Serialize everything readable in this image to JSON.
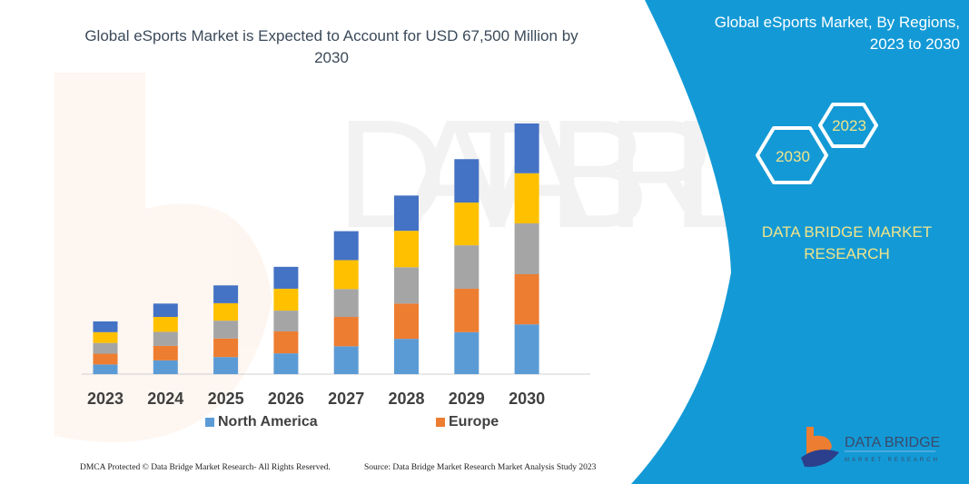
{
  "title": "Global eSports Market is Expected to Account for USD 67,500 Million by 2030",
  "side_panel": {
    "title_line1": "Global eSports Market, By Regions,",
    "title_line2": "2023 to 2030",
    "hex_labels": [
      "2030",
      "2023"
    ],
    "brand_line1": "DATA BRIDGE MARKET",
    "brand_line2": "RESEARCH",
    "logo_text": "DATA BRIDGE",
    "logo_subtext": "MARKET RESEARCH",
    "background_color": "#139ad6",
    "accent_text_color": "#f1e48a"
  },
  "footer": {
    "copyright": "DMCA Protected © Data Bridge Market Research- All Rights Reserved.",
    "source": "Source: Data Bridge Market Research Market Analysis Study 2023"
  },
  "chart_data": {
    "type": "bar",
    "stacked": true,
    "title": "Global eSports Market is Expected to Account for USD 67,500 Million by 2030",
    "categories": [
      "2023",
      "2024",
      "2025",
      "2026",
      "2027",
      "2028",
      "2029",
      "2030"
    ],
    "series": [
      {
        "name": "North America",
        "color": "#5b9bd5",
        "values": [
          2600,
          3700,
          4600,
          5600,
          7500,
          9500,
          11300,
          13400
        ]
      },
      {
        "name": "Europe",
        "color": "#ed7d31",
        "values": [
          2900,
          3900,
          5000,
          5900,
          7900,
          9500,
          11700,
          13500
        ]
      },
      {
        "color": "#a5a5a5",
        "values": [
          2900,
          3800,
          4800,
          5600,
          7500,
          9800,
          11700,
          13700
        ]
      },
      {
        "color": "#ffc000",
        "values": [
          2900,
          4000,
          4700,
          5900,
          7800,
          9800,
          11500,
          13500
        ]
      },
      {
        "color": "#4472c4",
        "values": [
          2900,
          3600,
          4800,
          5900,
          7800,
          9500,
          11700,
          13400
        ]
      }
    ],
    "legend": [
      "North America",
      "Europe"
    ],
    "legend_position": "bottom",
    "ylim": [
      0,
      67500
    ],
    "y_axis_visible": false,
    "grid": false
  }
}
